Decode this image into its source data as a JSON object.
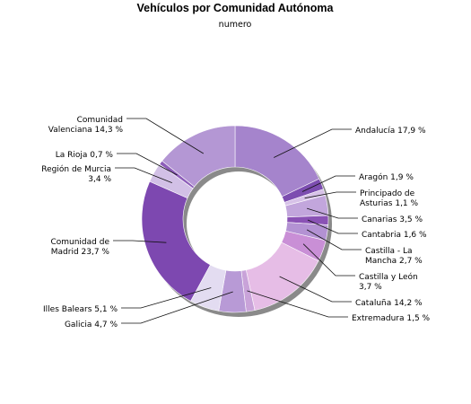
{
  "chart_data": {
    "type": "pie",
    "donut": true,
    "title": "Vehículos por Comunidad Autónoma",
    "subtitle": "numero",
    "unit": "%",
    "slices": [
      {
        "name": "Andalucía",
        "label": [
          "Andalucía 17,9 %"
        ],
        "value": 17.9,
        "color": "#a584cc"
      },
      {
        "name": "Aragón",
        "label": [
          "Aragón 1,9 %"
        ],
        "value": 1.9,
        "color": "#7c4db0"
      },
      {
        "name": "Principado de Asturias",
        "label": [
          "Principado de",
          "Asturias 1,1 %"
        ],
        "value": 1.1,
        "color": "#d7c2e8"
      },
      {
        "name": "Canarias",
        "label": [
          "Canarias 3,5 %"
        ],
        "value": 3.5,
        "color": "#c2a6dc"
      },
      {
        "name": "Cantabria",
        "label": [
          "Cantabria 1,6 %"
        ],
        "value": 1.6,
        "color": "#8a52b5"
      },
      {
        "name": "Castilla - La Mancha",
        "label": [
          "Castilla - La",
          "Mancha 2,7 %"
        ],
        "value": 2.7,
        "color": "#b392d3"
      },
      {
        "name": "Castilla y León",
        "label": [
          "Castilla y León",
          "3,7 %"
        ],
        "value": 3.7,
        "color": "#c98fd6"
      },
      {
        "name": "Cataluña",
        "label": [
          "Cataluña 14,2 %"
        ],
        "value": 14.2,
        "color": "#e6bde6"
      },
      {
        "name": "Extremadura",
        "label": [
          "Extremadura 1,5 %"
        ],
        "value": 1.5,
        "color": "#c9a3d9"
      },
      {
        "name": "Galicia",
        "label": [
          "Galicia 4,7 %"
        ],
        "value": 4.7,
        "color": "#b89ad6"
      },
      {
        "name": "Illes Balears",
        "label": [
          "Illes Balears 5,1 %"
        ],
        "value": 5.1,
        "color": "#e3dcf1"
      },
      {
        "name": "Comunidad de Madrid",
        "label": [
          "Comunidad de",
          "Madrid 23,7 %"
        ],
        "value": 23.7,
        "color": "#7d48b0"
      },
      {
        "name": "Región de Murcia",
        "label": [
          "Región de Murcia",
          "3,4 %"
        ],
        "value": 3.4,
        "color": "#d2c0e6"
      },
      {
        "name": "La Rioja",
        "label": [
          "La Rioja 0,7 %"
        ],
        "value": 0.7,
        "color": "#8d5db9"
      },
      {
        "name": "Comunidad Valenciana",
        "label": [
          "Comunidad",
          "Valenciana 14,3 %"
        ],
        "value": 14.3,
        "color": "#b497d4"
      }
    ]
  }
}
